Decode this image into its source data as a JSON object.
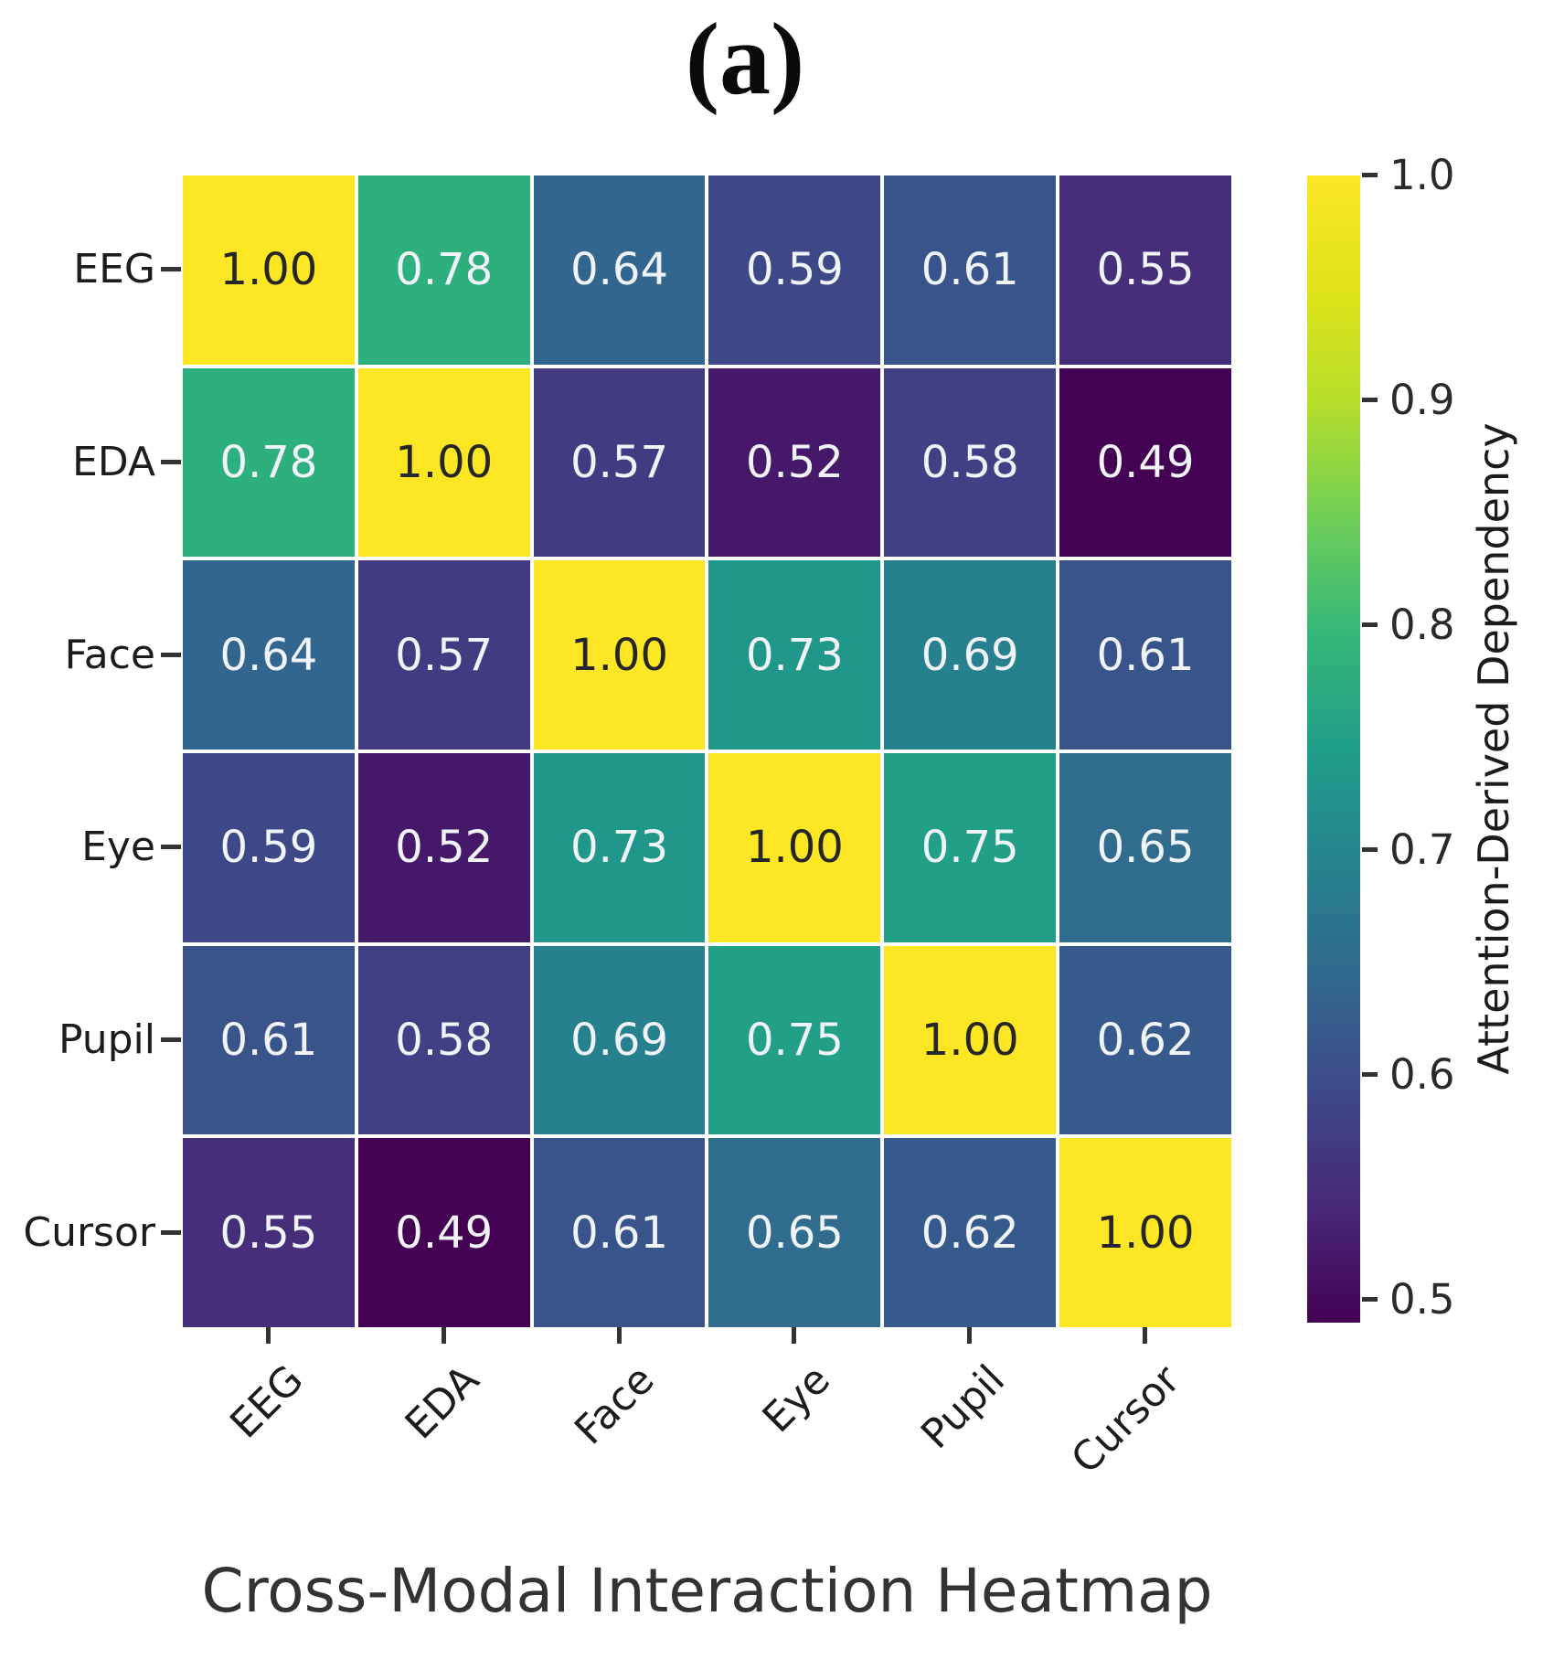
{
  "figure": {
    "panel_label": "(a)",
    "caption": "Cross-Modal Interaction Heatmap"
  },
  "colors": {
    "background": "#ffffff",
    "gridline": "#ffffff",
    "tick": "#333333",
    "label_text": "#1c1c1c",
    "annotation_dark": "#262626",
    "annotation_light": "#f0f4f8"
  },
  "chart_data": {
    "type": "heatmap",
    "title": "(a)",
    "xlabel": "Cross-Modal Interaction Heatmap",
    "ylabel": "",
    "categories": [
      "EEG",
      "EDA",
      "Face",
      "Eye",
      "Pupil",
      "Cursor"
    ],
    "x_categories": [
      "EEG",
      "EDA",
      "Face",
      "Eye",
      "Pupil",
      "Cursor"
    ],
    "matrix": [
      [
        1.0,
        0.78,
        0.64,
        0.59,
        0.61,
        0.55
      ],
      [
        0.78,
        1.0,
        0.57,
        0.52,
        0.58,
        0.49
      ],
      [
        0.64,
        0.57,
        1.0,
        0.73,
        0.69,
        0.61
      ],
      [
        0.59,
        0.52,
        0.73,
        1.0,
        0.75,
        0.65
      ],
      [
        0.61,
        0.58,
        0.69,
        0.75,
        1.0,
        0.62
      ],
      [
        0.55,
        0.49,
        0.61,
        0.65,
        0.62,
        1.0
      ]
    ],
    "decimals": 2,
    "vmin": 0.49,
    "vmax": 1.0,
    "colorbar": {
      "label": "Attention-Derived Dependency",
      "ticks": [
        1.0,
        0.9,
        0.8,
        0.7,
        0.6,
        0.5
      ],
      "tick_labels": [
        "1.0",
        "0.9",
        "0.8",
        "0.7",
        "0.6",
        "0.5"
      ]
    },
    "colormap": {
      "name": "viridis",
      "stops": [
        "#440154",
        "#482878",
        "#3e4989",
        "#31688e",
        "#26828e",
        "#1f9e89",
        "#35b779",
        "#6ece58",
        "#b5de2b",
        "#dfe318",
        "#fde725"
      ]
    },
    "grid_on": true,
    "legend_position": "right-colorbar",
    "x_tick_rotation_deg": 45
  }
}
